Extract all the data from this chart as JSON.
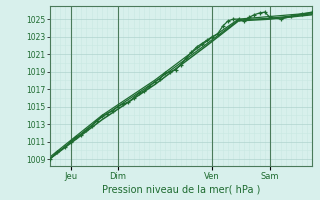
{
  "title": "Pression niveau de la mer( hPa )",
  "ylabel_ticks": [
    1009,
    1011,
    1013,
    1015,
    1017,
    1019,
    1021,
    1023,
    1025
  ],
  "ylim": [
    1008.2,
    1026.5
  ],
  "xlim": [
    0,
    100
  ],
  "day_ticks": [
    {
      "label": "Jeu",
      "x": 8
    },
    {
      "label": "Dim",
      "x": 26
    },
    {
      "label": "Ven",
      "x": 62
    },
    {
      "label": "Sam",
      "x": 84
    }
  ],
  "bg_color": "#d8f0ec",
  "grid_color_minor": "#c8e8e2",
  "grid_color_major": "#b0d4ce",
  "line_color": "#1e6b30",
  "series_main": [
    [
      0,
      1009.0
    ],
    [
      3,
      1009.8
    ],
    [
      6,
      1010.4
    ],
    [
      8,
      1011.0
    ],
    [
      10,
      1011.5
    ],
    [
      12,
      1011.8
    ],
    [
      14,
      1012.3
    ],
    [
      16,
      1012.8
    ],
    [
      18,
      1013.4
    ],
    [
      20,
      1013.9
    ],
    [
      22,
      1014.2
    ],
    [
      24,
      1014.5
    ],
    [
      26,
      1015.0
    ],
    [
      28,
      1015.3
    ],
    [
      30,
      1015.5
    ],
    [
      32,
      1016.0
    ],
    [
      34,
      1016.5
    ],
    [
      36,
      1016.8
    ],
    [
      38,
      1017.3
    ],
    [
      40,
      1017.8
    ],
    [
      42,
      1018.2
    ],
    [
      44,
      1018.8
    ],
    [
      46,
      1019.0
    ],
    [
      48,
      1019.2
    ],
    [
      50,
      1019.8
    ],
    [
      52,
      1020.5
    ],
    [
      54,
      1021.2
    ],
    [
      56,
      1021.8
    ],
    [
      58,
      1022.2
    ],
    [
      60,
      1022.6
    ],
    [
      62,
      1023.0
    ],
    [
      64,
      1023.3
    ],
    [
      66,
      1024.2
    ],
    [
      68,
      1024.8
    ],
    [
      70,
      1025.0
    ],
    [
      72,
      1025.0
    ],
    [
      74,
      1024.8
    ],
    [
      76,
      1025.2
    ],
    [
      78,
      1025.5
    ],
    [
      80,
      1025.7
    ],
    [
      82,
      1025.8
    ],
    [
      84,
      1025.2
    ],
    [
      88,
      1025.0
    ],
    [
      92,
      1025.3
    ],
    [
      96,
      1025.6
    ],
    [
      100,
      1025.8
    ]
  ],
  "series_smooth1": [
    [
      0,
      1009.0
    ],
    [
      20,
      1013.5
    ],
    [
      40,
      1017.5
    ],
    [
      60,
      1022.0
    ],
    [
      72,
      1024.8
    ],
    [
      84,
      1025.0
    ],
    [
      100,
      1025.5
    ]
  ],
  "series_smooth2": [
    [
      0,
      1009.2
    ],
    [
      20,
      1014.0
    ],
    [
      40,
      1018.0
    ],
    [
      60,
      1022.5
    ],
    [
      72,
      1025.0
    ],
    [
      84,
      1025.3
    ],
    [
      100,
      1025.7
    ]
  ],
  "series_smooth3": [
    [
      0,
      1009.0
    ],
    [
      20,
      1013.8
    ],
    [
      40,
      1017.8
    ],
    [
      60,
      1022.2
    ],
    [
      72,
      1024.9
    ],
    [
      84,
      1025.1
    ],
    [
      100,
      1025.6
    ]
  ]
}
